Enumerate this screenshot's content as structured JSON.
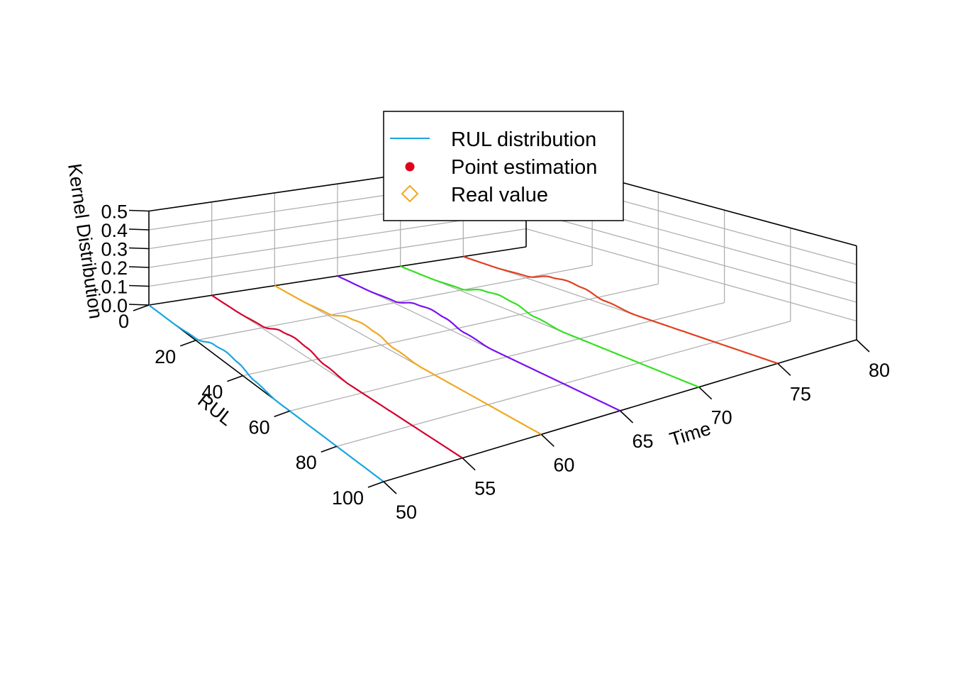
{
  "chart_data": {
    "type": "line",
    "axes": {
      "x": {
        "label": "Time",
        "range": [
          50,
          80
        ],
        "ticks": [
          "50",
          "55",
          "60",
          "65",
          "70",
          "75",
          "80"
        ]
      },
      "y": {
        "label": "RUL",
        "range": [
          0,
          100
        ],
        "ticks": [
          "0",
          "20",
          "40",
          "60",
          "80",
          "100"
        ]
      },
      "z": {
        "label": "Kernel Distribution",
        "range": [
          0,
          0.5
        ],
        "ticks": [
          "0.0",
          "0.1",
          "0.2",
          "0.3",
          "0.4",
          "0.5"
        ]
      }
    },
    "grid": true,
    "legend": {
      "position": "top-center",
      "entries": [
        {
          "label": "RUL distribution",
          "marker": "line",
          "color": "#1ba5e0"
        },
        {
          "label": "Point estimation",
          "marker": "filled-circle",
          "color": "#e0001b"
        },
        {
          "label": "Real value",
          "marker": "open-diamond",
          "color": "#f0a820"
        }
      ]
    },
    "series": [
      {
        "time": 50,
        "color": "#1ba5e0",
        "rul": [
          0,
          10,
          20,
          28,
          33,
          38,
          45,
          55,
          70,
          100
        ],
        "density": [
          0.0,
          0.0,
          0.01,
          0.05,
          0.06,
          0.05,
          0.02,
          0.0,
          0.0,
          0.0
        ]
      },
      {
        "time": 55,
        "color": "#d4002a",
        "rul": [
          0,
          10,
          20,
          28,
          33,
          38,
          45,
          55,
          70,
          100
        ],
        "density": [
          0.0,
          0.0,
          0.01,
          0.05,
          0.06,
          0.05,
          0.02,
          0.0,
          0.0,
          0.0
        ]
      },
      {
        "time": 60,
        "color": "#f0a820",
        "rul": [
          0,
          10,
          20,
          28,
          33,
          38,
          45,
          55,
          70,
          100
        ],
        "density": [
          0.0,
          0.0,
          0.01,
          0.05,
          0.06,
          0.05,
          0.02,
          0.0,
          0.0,
          0.0
        ]
      },
      {
        "time": 65,
        "color": "#7a10f0",
        "rul": [
          0,
          10,
          20,
          28,
          33,
          38,
          45,
          55,
          70,
          100
        ],
        "density": [
          0.0,
          0.0,
          0.01,
          0.05,
          0.06,
          0.05,
          0.02,
          0.0,
          0.0,
          0.0
        ]
      },
      {
        "time": 70,
        "color": "#33e020",
        "rul": [
          0,
          10,
          20,
          28,
          33,
          38,
          45,
          55,
          70,
          100
        ],
        "density": [
          0.0,
          0.0,
          0.01,
          0.05,
          0.06,
          0.05,
          0.02,
          0.0,
          0.0,
          0.0
        ]
      },
      {
        "time": 75,
        "color": "#e04020",
        "rul": [
          0,
          10,
          20,
          28,
          33,
          38,
          45,
          55,
          70,
          100
        ],
        "density": [
          0.0,
          0.0,
          0.01,
          0.05,
          0.06,
          0.05,
          0.02,
          0.0,
          0.0,
          0.0
        ]
      }
    ]
  }
}
